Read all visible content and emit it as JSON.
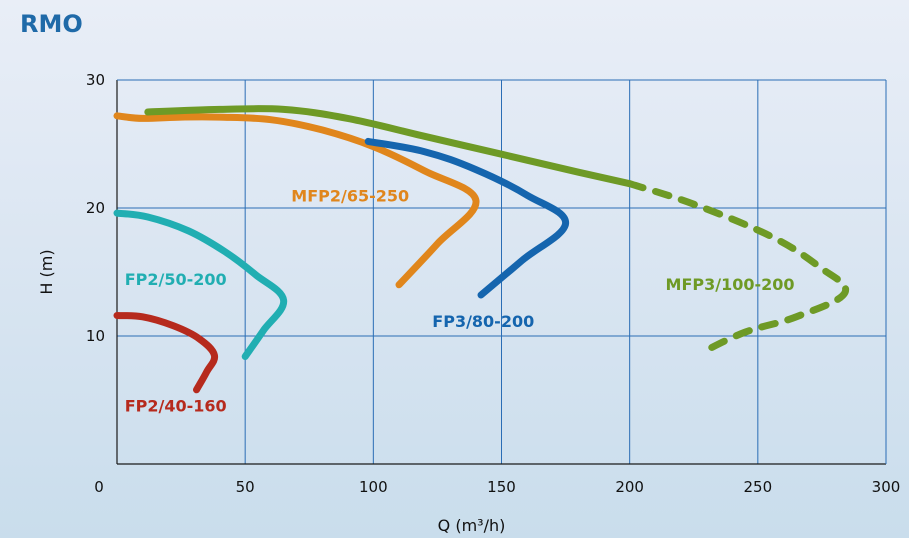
{
  "header": {
    "title": "RMO"
  },
  "chart_data": {
    "type": "line",
    "xlabel": "Q (m³/h)",
    "ylabel": "H (m)",
    "xlim": [
      0,
      300
    ],
    "ylim": [
      0,
      30
    ],
    "x_ticks": [
      "0",
      "50",
      "100",
      "150",
      "200",
      "250",
      "300"
    ],
    "y_ticks": [
      "10",
      "20",
      "30"
    ],
    "grid": true,
    "grid_color": "#2a6db5",
    "series": [
      {
        "name": "FP2/40-160",
        "color": "#b62a1d",
        "dashed": false,
        "points": [
          [
            0,
            11.6
          ],
          [
            10,
            11.5
          ],
          [
            22,
            10.8
          ],
          [
            32,
            9.8
          ],
          [
            38,
            8.5
          ],
          [
            35,
            7.2
          ],
          [
            31,
            5.8
          ]
        ]
      },
      {
        "name": "FP2/50-200",
        "color": "#21aeb2",
        "dashed": false,
        "points": [
          [
            0,
            19.6
          ],
          [
            12,
            19.3
          ],
          [
            28,
            18.2
          ],
          [
            42,
            16.6
          ],
          [
            54,
            14.8
          ],
          [
            65,
            12.8
          ],
          [
            57,
            10.4
          ],
          [
            50,
            8.4
          ]
        ]
      },
      {
        "name": "MFP2/65-250",
        "color": "#e0861c",
        "dashed": false,
        "points": [
          [
            0,
            27.2
          ],
          [
            10,
            27.0
          ],
          [
            25,
            27.1
          ],
          [
            40,
            27.1
          ],
          [
            60,
            26.9
          ],
          [
            80,
            26.1
          ],
          [
            100,
            24.8
          ],
          [
            120,
            22.9
          ],
          [
            140,
            20.6
          ],
          [
            125,
            17.2
          ],
          [
            110,
            14.0
          ]
        ]
      },
      {
        "name": "FP3/80-200",
        "color": "#1565ae",
        "dashed": false,
        "points": [
          [
            98,
            25.2
          ],
          [
            120,
            24.4
          ],
          [
            140,
            23.0
          ],
          [
            160,
            21.0
          ],
          [
            175,
            18.8
          ],
          [
            158,
            15.9
          ],
          [
            142,
            13.2
          ]
        ]
      },
      {
        "name": "MFP3/100-200",
        "color": "#6e9a26",
        "dashed": false,
        "points": [
          [
            12,
            27.5
          ],
          [
            40,
            27.7
          ],
          [
            65,
            27.7
          ],
          [
            90,
            27.0
          ],
          [
            120,
            25.6
          ],
          [
            150,
            24.2
          ],
          [
            180,
            22.8
          ],
          [
            200,
            21.9
          ]
        ]
      },
      {
        "name": "",
        "color": "#6e9a26",
        "dashed": true,
        "points": [
          [
            200,
            21.9
          ],
          [
            225,
            20.3
          ],
          [
            255,
            17.8
          ],
          [
            274,
            15.4
          ],
          [
            284,
            13.4
          ],
          [
            265,
            11.5
          ],
          [
            245,
            10.3
          ],
          [
            228,
            8.7
          ]
        ]
      }
    ],
    "labels": [
      {
        "text": "FP2/40-160",
        "x": 3,
        "y": 4.1,
        "color": "#b62a1d"
      },
      {
        "text": "FP2/50-200",
        "x": 3,
        "y": 14.0,
        "color": "#21aeb2"
      },
      {
        "text": "MFP2/65-250",
        "x": 68,
        "y": 20.5,
        "color": "#e0861c"
      },
      {
        "text": "FP3/80-200",
        "x": 123,
        "y": 10.7,
        "color": "#1565ae"
      },
      {
        "text": "MFP3/100-200",
        "x": 214,
        "y": 13.6,
        "color": "#6e9a26"
      }
    ]
  }
}
